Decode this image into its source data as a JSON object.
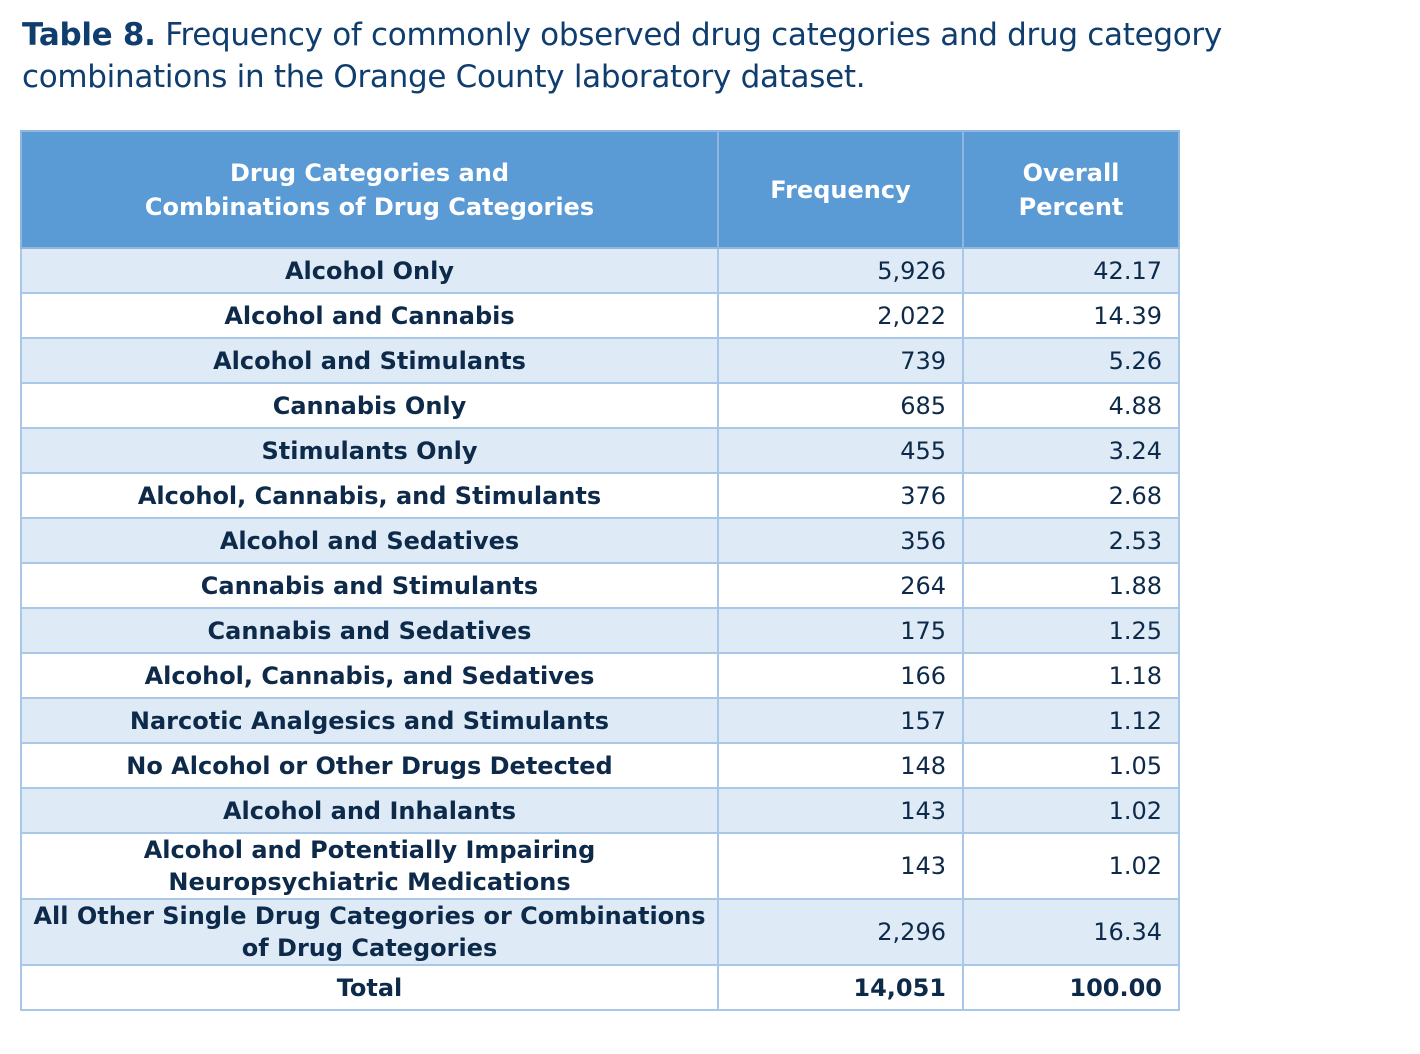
{
  "caption": {
    "label": "Table 8.",
    "text": "Frequency of commonly observed drug categories and drug category combinations in the Orange County laboratory dataset."
  },
  "table": {
    "headers": {
      "category_line1": "Drug Categories and",
      "category_line2": "Combinations of Drug Categories",
      "frequency": "Frequency",
      "percent_line1": "Overall",
      "percent_line2": "Percent"
    },
    "rows": [
      {
        "category": "Alcohol Only",
        "frequency": "5,926",
        "percent": "42.17"
      },
      {
        "category": "Alcohol and Cannabis",
        "frequency": "2,022",
        "percent": "14.39"
      },
      {
        "category": "Alcohol and Stimulants",
        "frequency": "739",
        "percent": "5.26"
      },
      {
        "category": "Cannabis Only",
        "frequency": "685",
        "percent": "4.88"
      },
      {
        "category": "Stimulants Only",
        "frequency": "455",
        "percent": "3.24"
      },
      {
        "category": "Alcohol, Cannabis, and Stimulants",
        "frequency": "376",
        "percent": "2.68"
      },
      {
        "category": "Alcohol and Sedatives",
        "frequency": "356",
        "percent": "2.53"
      },
      {
        "category": "Cannabis and Stimulants",
        "frequency": "264",
        "percent": "1.88"
      },
      {
        "category": "Cannabis and Sedatives",
        "frequency": "175",
        "percent": "1.25"
      },
      {
        "category": "Alcohol, Cannabis, and Sedatives",
        "frequency": "166",
        "percent": "1.18"
      },
      {
        "category": "Narcotic Analgesics and Stimulants",
        "frequency": "157",
        "percent": "1.12"
      },
      {
        "category": "No Alcohol or Other Drugs Detected",
        "frequency": "148",
        "percent": "1.05"
      },
      {
        "category": "Alcohol and Inhalants",
        "frequency": "143",
        "percent": "1.02"
      },
      {
        "category": "Alcohol and Potentially Impairing Neuropsychiatric Medications",
        "frequency": "143",
        "percent": "1.02"
      },
      {
        "category": "All Other Single Drug Categories or Combinations of Drug Categories",
        "frequency": "2,296",
        "percent": "16.34"
      }
    ],
    "total": {
      "category": "Total",
      "frequency": "14,051",
      "percent": "100.00"
    }
  }
}
